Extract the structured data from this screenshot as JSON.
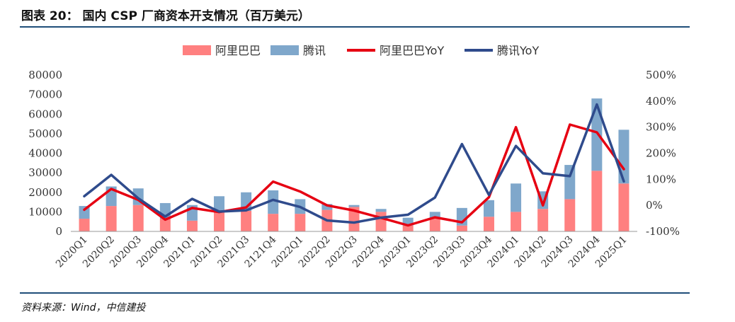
{
  "figure": {
    "title": "图表 20：   国内 CSP 厂商资本开支情况（百万美元）",
    "source": "资料来源：Wind，中信建投"
  },
  "chart_data": {
    "type": "bar",
    "categories": [
      "2020Q1",
      "2020Q2",
      "2020Q3",
      "2020Q4",
      "2021Q1",
      "2021Q2",
      "2021Q3",
      "2121Q4",
      "2022Q1",
      "2022Q2",
      "2022Q3",
      "2022Q4",
      "2023Q1",
      "2023Q2",
      "2023Q3",
      "2023Q4",
      "2024Q1",
      "2024Q2",
      "2024Q3",
      "2024Q4",
      "2025Q1"
    ],
    "stacked_series": [
      {
        "name": "阿里巴巴",
        "color": "#ff8080",
        "values": [
          6500,
          13000,
          13500,
          6500,
          5500,
          10000,
          10500,
          9000,
          9000,
          11000,
          12500,
          10000,
          3000,
          6500,
          3000,
          7500,
          10000,
          11500,
          16500,
          31000,
          24500
        ]
      },
      {
        "name": "腾讯",
        "color": "#7fa7cb",
        "values": [
          6500,
          10000,
          8500,
          8000,
          8000,
          8000,
          9500,
          12000,
          7500,
          3000,
          1000,
          1500,
          4000,
          3500,
          9000,
          8500,
          14500,
          9000,
          17500,
          37000,
          27500
        ]
      }
    ],
    "line_series": [
      {
        "name": "阿里巴巴YoY",
        "color": "#e60012",
        "values": [
          -17,
          63,
          21,
          -55,
          -10,
          -26,
          -8,
          91,
          53,
          0,
          -20,
          -48,
          -77,
          -46,
          -65,
          31,
          300,
          0,
          310,
          280,
          139
        ]
      },
      {
        "name": "腾讯YoY",
        "color": "#2f4b8c",
        "values": [
          35,
          117,
          27,
          -43,
          25,
          -24,
          -19,
          21,
          -6,
          -58,
          -66,
          -47,
          -36,
          30,
          235,
          40,
          228,
          123,
          112,
          387,
          92
        ]
      }
    ],
    "y_left": {
      "min": 0,
      "max": 80000,
      "ticks": [
        0,
        10000,
        20000,
        30000,
        40000,
        50000,
        60000,
        70000,
        80000
      ]
    },
    "y_right": {
      "min": -100,
      "max": 500,
      "ticks": [
        "-100%",
        "0%",
        "100%",
        "200%",
        "300%",
        "400%",
        "500%"
      ]
    },
    "grid": false,
    "legend_position": "top"
  }
}
